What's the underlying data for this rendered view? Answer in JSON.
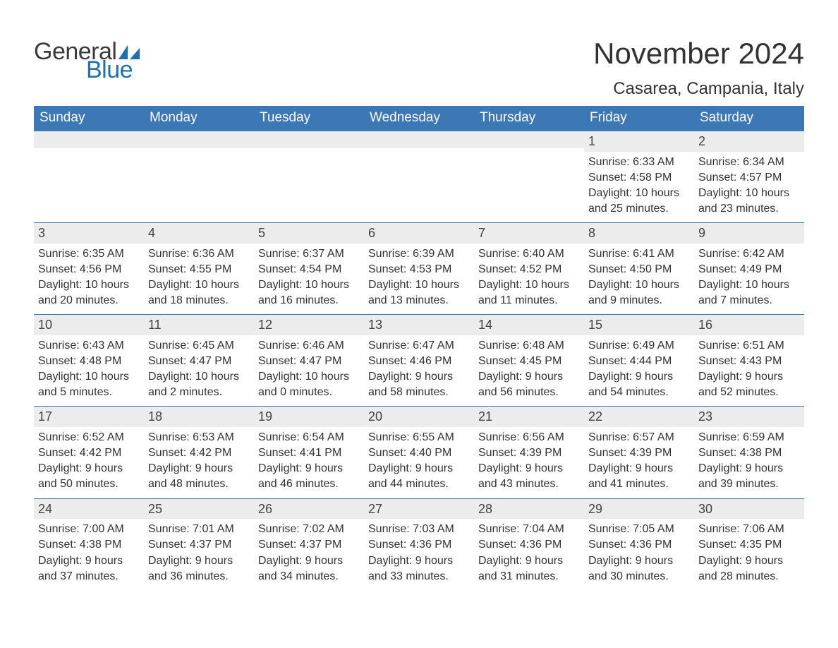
{
  "logo": {
    "word1": "General",
    "word2": "Blue",
    "text_color": "#3b3b3b",
    "accent_color": "#1f6fb2"
  },
  "title": "November 2024",
  "location": "Casarea, Campania, Italy",
  "colors": {
    "header_bg": "#3b78b5",
    "header_text": "#ffffff",
    "daynum_bg": "#ececec",
    "rule": "#3b78b5",
    "body_text": "#333333",
    "page_bg": "#ffffff"
  },
  "typography": {
    "title_fontsize": 42,
    "location_fontsize": 24,
    "dow_fontsize": 19,
    "daynum_fontsize": 18,
    "body_fontsize": 16
  },
  "days_of_week": [
    "Sunday",
    "Monday",
    "Tuesday",
    "Wednesday",
    "Thursday",
    "Friday",
    "Saturday"
  ],
  "labels": {
    "sunrise": "Sunrise:",
    "sunset": "Sunset:",
    "daylight": "Daylight:"
  },
  "weeks": [
    [
      null,
      null,
      null,
      null,
      null,
      {
        "n": "1",
        "sunrise": "6:33 AM",
        "sunset": "4:58 PM",
        "daylight": "10 hours and 25 minutes."
      },
      {
        "n": "2",
        "sunrise": "6:34 AM",
        "sunset": "4:57 PM",
        "daylight": "10 hours and 23 minutes."
      }
    ],
    [
      {
        "n": "3",
        "sunrise": "6:35 AM",
        "sunset": "4:56 PM",
        "daylight": "10 hours and 20 minutes."
      },
      {
        "n": "4",
        "sunrise": "6:36 AM",
        "sunset": "4:55 PM",
        "daylight": "10 hours and 18 minutes."
      },
      {
        "n": "5",
        "sunrise": "6:37 AM",
        "sunset": "4:54 PM",
        "daylight": "10 hours and 16 minutes."
      },
      {
        "n": "6",
        "sunrise": "6:39 AM",
        "sunset": "4:53 PM",
        "daylight": "10 hours and 13 minutes."
      },
      {
        "n": "7",
        "sunrise": "6:40 AM",
        "sunset": "4:52 PM",
        "daylight": "10 hours and 11 minutes."
      },
      {
        "n": "8",
        "sunrise": "6:41 AM",
        "sunset": "4:50 PM",
        "daylight": "10 hours and 9 minutes."
      },
      {
        "n": "9",
        "sunrise": "6:42 AM",
        "sunset": "4:49 PM",
        "daylight": "10 hours and 7 minutes."
      }
    ],
    [
      {
        "n": "10",
        "sunrise": "6:43 AM",
        "sunset": "4:48 PM",
        "daylight": "10 hours and 5 minutes."
      },
      {
        "n": "11",
        "sunrise": "6:45 AM",
        "sunset": "4:47 PM",
        "daylight": "10 hours and 2 minutes."
      },
      {
        "n": "12",
        "sunrise": "6:46 AM",
        "sunset": "4:47 PM",
        "daylight": "10 hours and 0 minutes."
      },
      {
        "n": "13",
        "sunrise": "6:47 AM",
        "sunset": "4:46 PM",
        "daylight": "9 hours and 58 minutes."
      },
      {
        "n": "14",
        "sunrise": "6:48 AM",
        "sunset": "4:45 PM",
        "daylight": "9 hours and 56 minutes."
      },
      {
        "n": "15",
        "sunrise": "6:49 AM",
        "sunset": "4:44 PM",
        "daylight": "9 hours and 54 minutes."
      },
      {
        "n": "16",
        "sunrise": "6:51 AM",
        "sunset": "4:43 PM",
        "daylight": "9 hours and 52 minutes."
      }
    ],
    [
      {
        "n": "17",
        "sunrise": "6:52 AM",
        "sunset": "4:42 PM",
        "daylight": "9 hours and 50 minutes."
      },
      {
        "n": "18",
        "sunrise": "6:53 AM",
        "sunset": "4:42 PM",
        "daylight": "9 hours and 48 minutes."
      },
      {
        "n": "19",
        "sunrise": "6:54 AM",
        "sunset": "4:41 PM",
        "daylight": "9 hours and 46 minutes."
      },
      {
        "n": "20",
        "sunrise": "6:55 AM",
        "sunset": "4:40 PM",
        "daylight": "9 hours and 44 minutes."
      },
      {
        "n": "21",
        "sunrise": "6:56 AM",
        "sunset": "4:39 PM",
        "daylight": "9 hours and 43 minutes."
      },
      {
        "n": "22",
        "sunrise": "6:57 AM",
        "sunset": "4:39 PM",
        "daylight": "9 hours and 41 minutes."
      },
      {
        "n": "23",
        "sunrise": "6:59 AM",
        "sunset": "4:38 PM",
        "daylight": "9 hours and 39 minutes."
      }
    ],
    [
      {
        "n": "24",
        "sunrise": "7:00 AM",
        "sunset": "4:38 PM",
        "daylight": "9 hours and 37 minutes."
      },
      {
        "n": "25",
        "sunrise": "7:01 AM",
        "sunset": "4:37 PM",
        "daylight": "9 hours and 36 minutes."
      },
      {
        "n": "26",
        "sunrise": "7:02 AM",
        "sunset": "4:37 PM",
        "daylight": "9 hours and 34 minutes."
      },
      {
        "n": "27",
        "sunrise": "7:03 AM",
        "sunset": "4:36 PM",
        "daylight": "9 hours and 33 minutes."
      },
      {
        "n": "28",
        "sunrise": "7:04 AM",
        "sunset": "4:36 PM",
        "daylight": "9 hours and 31 minutes."
      },
      {
        "n": "29",
        "sunrise": "7:05 AM",
        "sunset": "4:36 PM",
        "daylight": "9 hours and 30 minutes."
      },
      {
        "n": "30",
        "sunrise": "7:06 AM",
        "sunset": "4:35 PM",
        "daylight": "9 hours and 28 minutes."
      }
    ]
  ]
}
